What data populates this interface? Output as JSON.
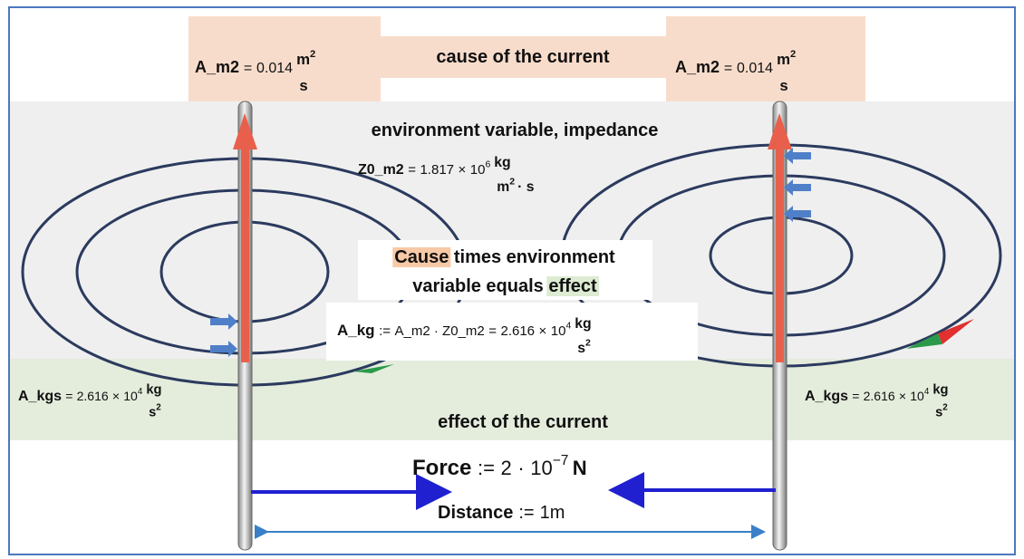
{
  "top": {
    "cause": "cause of the current"
  },
  "left_source": {
    "name": "A_m2",
    "sign": "=",
    "value": "0.014",
    "unit_top": "m",
    "unit_top_exp": "2",
    "unit_bottom": "s"
  },
  "right_source": {
    "name": "A_m2",
    "sign": "=",
    "value": "0.014",
    "unit_top": "m",
    "unit_top_exp": "2",
    "unit_bottom": "s"
  },
  "impedance": {
    "caption": "environment variable, impedance",
    "name": "Z0_m2",
    "sign": "=",
    "mantissa": "1.817",
    "times": "×",
    "base": "10",
    "exponent": "6",
    "unit_top": "kg",
    "unit_bottom": "m",
    "unit_bottom_exp": "2",
    "unit_bottom_rest": "· s"
  },
  "rule": {
    "cause": "Cause",
    "line1_rest": "times environment",
    "line2_start": "variable equals",
    "effect": "effect"
  },
  "product": {
    "name": "A_kg",
    "sign": ":=",
    "expr": "A_m2 · Z0_m2",
    "eq": "=",
    "mantissa": "2.616",
    "times": "×",
    "base": "10",
    "exponent": "4",
    "unit_top": "kg",
    "unit_bottom": "s",
    "unit_bottom_exp": "2"
  },
  "left_effect": {
    "name": "A_kgs",
    "sign": "=",
    "mantissa": "2.616",
    "times": "×",
    "base": "10",
    "exponent": "4",
    "unit_top": "kg",
    "unit_bottom": "s",
    "unit_bottom_exp": "2"
  },
  "right_effect": {
    "name": "A_kgs",
    "sign": "=",
    "mantissa": "2.616",
    "times": "×",
    "base": "10",
    "exponent": "4",
    "unit_top": "kg",
    "unit_bottom": "s",
    "unit_bottom_exp": "2"
  },
  "effect_caption": "effect of the current",
  "force": {
    "name": "Force",
    "sign": ":=",
    "coefficient": "2",
    "dot": "·",
    "base": "10",
    "exponent": "−7",
    "unit": "N"
  },
  "distance": {
    "name": "Distance",
    "sign": ":=",
    "value": "1m"
  }
}
